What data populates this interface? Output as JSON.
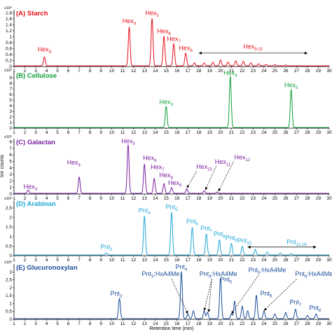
{
  "chart_data": {
    "type": "line",
    "ylabel": "Ion counts",
    "xlabel": "Retention time (min)",
    "xlim": [
      1,
      30
    ],
    "x_ticks": [
      "1",
      "2",
      "3",
      "4",
      "5",
      "6",
      "7",
      "8",
      "9",
      "10",
      "11",
      "12",
      "13",
      "14",
      "15",
      "16",
      "17",
      "18",
      "19",
      "20",
      "21",
      "22",
      "23",
      "24",
      "25",
      "26",
      "27",
      "28",
      "29",
      "30"
    ],
    "panels": [
      {
        "title": "(A) Starch",
        "color": "#e8101a",
        "scale": "x10⁶",
        "ylim": [
          0,
          1.9
        ],
        "y_ticks": [
          "0",
          "0.2",
          "0.4",
          "0.6",
          "0.8",
          "1",
          "1.2",
          "1.4",
          "1.6",
          "1.8"
        ],
        "peaks": [
          [
            3.8,
            0.3
          ],
          [
            11.6,
            1.3
          ],
          [
            13.7,
            1.6
          ],
          [
            14.8,
            1.0
          ],
          [
            15.7,
            0.74
          ],
          [
            16.8,
            0.43
          ],
          [
            17.6,
            0.1
          ],
          [
            18.5,
            0.1
          ],
          [
            19.3,
            0.12
          ],
          [
            20,
            0.2
          ],
          [
            20.7,
            0.13
          ],
          [
            21.4,
            0.17
          ],
          [
            22.1,
            0.15
          ],
          [
            22.8,
            0.1
          ],
          [
            23.5,
            0.07
          ],
          [
            24.2,
            0.05
          ],
          [
            25,
            0.04
          ],
          [
            26,
            0.03
          ]
        ],
        "labels": [
          {
            "text": "Hex",
            "sub": "3",
            "x": 3.8,
            "y": 0.5
          },
          {
            "text": "Hex",
            "sub": "4",
            "x": 11.6,
            "y": 1.45
          },
          {
            "text": "Hex",
            "sub": "5",
            "x": 13.7,
            "y": 1.72
          },
          {
            "text": "Hex",
            "sub": "6",
            "x": 14.8,
            "y": 1.12
          },
          {
            "text": "Hex",
            "sub": "7",
            "x": 15.7,
            "y": 0.86
          },
          {
            "text": "Hex",
            "sub": "8",
            "x": 16.8,
            "y": 0.55
          },
          {
            "text": "Hex",
            "sub": "9-21",
            "x": 23,
            "y": 0.6
          }
        ],
        "range_arrow": {
          "x1": 18,
          "x2": 28,
          "y": 0.45
        }
      },
      {
        "title": "(B) Cellulose",
        "color": "#10a03a",
        "scale": "x10⁵",
        "ylim": [
          0,
          10
        ],
        "y_ticks": [
          "0",
          "1",
          "2",
          "3",
          "4",
          "5",
          "6",
          "7",
          "8",
          "9"
        ],
        "peaks": [
          [
            15,
            3.8
          ],
          [
            20.9,
            9.2
          ],
          [
            26.5,
            6.8
          ]
        ],
        "labels": [
          {
            "text": "Hex",
            "sub": "3",
            "x": 15,
            "y": 4.3
          },
          {
            "text": "Hex",
            "sub": "4",
            "x": 20.9,
            "y": 9.5
          },
          {
            "text": "Hex",
            "sub": "5",
            "x": 26.5,
            "y": 7.3
          }
        ]
      },
      {
        "title": "(C) Galactan",
        "color": "#7a1fa0",
        "scale": "x10⁵",
        "ylim": [
          0,
          8.5
        ],
        "y_ticks": [
          "0",
          "1",
          "2",
          "3",
          "4",
          "5",
          "6",
          "7",
          "8"
        ],
        "peaks": [
          [
            2.3,
            0.5
          ],
          [
            7,
            2.5
          ],
          [
            11.5,
            7.5
          ],
          [
            13,
            4.5
          ],
          [
            13.9,
            2.3
          ],
          [
            14.8,
            1.5
          ],
          [
            15.5,
            0.9
          ],
          [
            16.9,
            0.7
          ],
          [
            18.5,
            0.4
          ],
          [
            19.7,
            0.2
          ]
        ],
        "labels": [
          {
            "text": "Hex",
            "sub": "3",
            "x": 2.5,
            "y": 0.8
          },
          {
            "text": "Hex",
            "sub": "4",
            "x": 6.5,
            "y": 4.5
          },
          {
            "text": "Hex",
            "sub": "5",
            "x": 11.5,
            "y": 7.8
          },
          {
            "text": "Hex",
            "sub": "6",
            "x": 13.5,
            "y": 5.2
          },
          {
            "text": "Hex",
            "sub": "7",
            "x": 14.2,
            "y": 3.8
          },
          {
            "text": "Hex",
            "sub": "8",
            "x": 15,
            "y": 2.6
          },
          {
            "text": "Hex",
            "sub": "9",
            "x": 15.8,
            "y": 1.4
          },
          {
            "text": "Hex",
            "sub": "10",
            "x": 18.5,
            "y": 3.9
          },
          {
            "text": "Hex",
            "sub": "11",
            "x": 20.2,
            "y": 4.6
          },
          {
            "text": "Hex",
            "sub": "12",
            "x": 22,
            "y": 5.3
          }
        ],
        "callouts": [
          [
            17.8,
            3.5,
            16.9,
            0.9
          ],
          [
            19.6,
            4.3,
            18.6,
            0.6
          ],
          [
            21.2,
            5.0,
            19.8,
            0.4
          ]
        ]
      },
      {
        "title": "(D) Arabinan",
        "color": "#1fa7d6",
        "scale": "x10⁶",
        "ylim": [
          0,
          2.9
        ],
        "y_ticks": [
          "0",
          "0.5",
          "1",
          "1.5",
          "2",
          "2.5"
        ],
        "peaks": [
          [
            9.5,
            0.1
          ],
          [
            13,
            2.05
          ],
          [
            15.5,
            2.25
          ],
          [
            17.4,
            1.45
          ],
          [
            18.7,
            1.1
          ],
          [
            19.9,
            0.8
          ],
          [
            21,
            0.6
          ],
          [
            22,
            0.45
          ],
          [
            23.2,
            0.3
          ],
          [
            24.3,
            0.15
          ],
          [
            25.5,
            0.1
          ],
          [
            26.5,
            0.07
          ]
        ],
        "labels": [
          {
            "text": "Pnt",
            "sub": "3",
            "x": 9.5,
            "y": 0.35
          },
          {
            "text": "Pnt",
            "sub": "4",
            "x": 13,
            "y": 2.25
          },
          {
            "text": "Pnt",
            "sub": "5",
            "x": 15.5,
            "y": 2.45
          },
          {
            "text": "Pnt",
            "sub": "6",
            "x": 17.4,
            "y": 1.68
          },
          {
            "text": "Pnt",
            "sub": "7",
            "x": 18.7,
            "y": 1.32
          },
          {
            "text": "Pnt",
            "sub": "8",
            "x": 19.9,
            "y": 1.02
          },
          {
            "text": "Pnt",
            "sub": "9",
            "x": 21,
            "y": 0.82
          },
          {
            "text": "Pnt",
            "sub": "10",
            "x": 22.2,
            "y": 0.68
          },
          {
            "text": "Pnt",
            "sub": "11-16",
            "x": 27,
            "y": 0.6
          }
        ],
        "range_arrow": {
          "x1": 22.5,
          "x2": 28.8,
          "y": 0.45
        }
      },
      {
        "title": "(E) Glucuronoxylan",
        "color": "#1a4d9b",
        "scale": "x10⁶",
        "ylim": [
          0,
          3.5
        ],
        "y_ticks": [
          "0",
          "0.5",
          "1",
          "1.5",
          "2",
          "2.5",
          "3"
        ],
        "peaks": [
          [
            10.7,
            1.3
          ],
          [
            16.4,
            3.0
          ],
          [
            17,
            0.3
          ],
          [
            17.5,
            0.5
          ],
          [
            18.5,
            0.5
          ],
          [
            18.8,
            0.4
          ],
          [
            20,
            2.6
          ],
          [
            21,
            0.3
          ],
          [
            21.3,
            1.1
          ],
          [
            22,
            0.8
          ],
          [
            22.5,
            0.5
          ],
          [
            23.3,
            1.5
          ],
          [
            24,
            0.5
          ],
          [
            25,
            0.3
          ],
          [
            26,
            0.4
          ],
          [
            26.9,
            0.6
          ],
          [
            28,
            0.2
          ],
          [
            28.8,
            0.3
          ]
        ],
        "labels": [
          {
            "text": "Pnt",
            "sub": "3",
            "x": 10.4,
            "y": 1.5
          },
          {
            "text": "Pnt",
            "sub": "4",
            "x": 16.4,
            "y": 3.2
          },
          {
            "text": "Pnt",
            "sub": "5",
            "x": 20.5,
            "y": 2.4
          },
          {
            "text": "Pnt",
            "sub": "6",
            "x": 24.2,
            "y": 1.5
          },
          {
            "text": "Pnt",
            "sub": "7",
            "x": 26.9,
            "y": 0.95
          },
          {
            "text": "Pnt",
            "sub": "8",
            "x": 28.7,
            "y": 0.6
          }
        ],
        "annotations": [
          {
            "pre": "Pnt",
            "sub": "3",
            "post": ":HxA4Me",
            "x": 14.5,
            "y": 2.75
          },
          {
            "pre": "Pnt",
            "sub": "4",
            "post": ":HxA4Me",
            "x": 19.8,
            "y": 2.75
          },
          {
            "pre": "Pnt",
            "sub": "5",
            "post": ":HxA4Me",
            "x": 24.3,
            "y": 3.0
          },
          {
            "pre": "Pnt",
            "sub": "6",
            "post": ":HxA4Me",
            "x": 28.6,
            "y": 2.75
          }
        ],
        "callouts": [
          [
            15.5,
            2.55,
            17,
            0.35
          ],
          [
            19.2,
            2.55,
            18.5,
            0.55
          ],
          [
            19.2,
            2.55,
            18.9,
            0.45
          ],
          [
            23.5,
            2.8,
            21,
            0.35
          ],
          [
            27,
            2.55,
            24,
            0.55
          ]
        ]
      }
    ]
  }
}
